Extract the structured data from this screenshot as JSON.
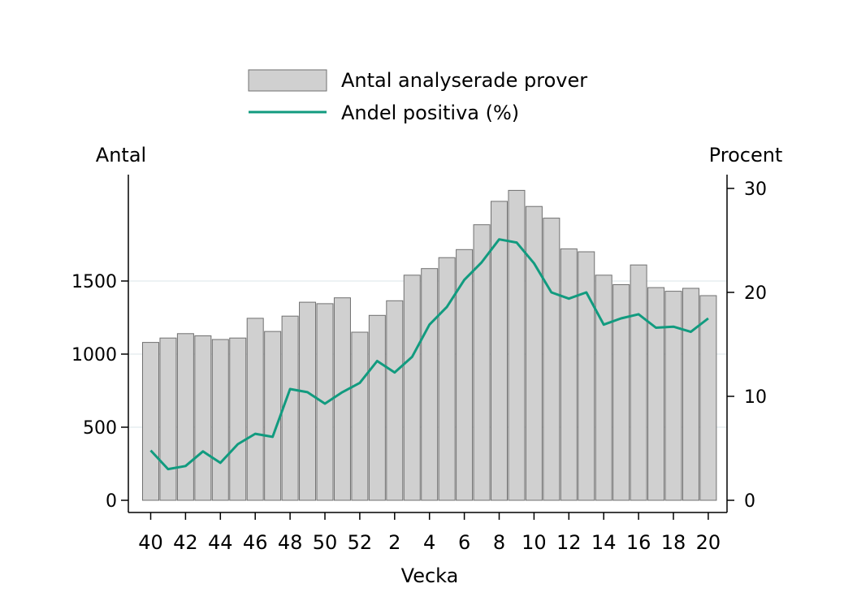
{
  "chart_data": {
    "type": "bar",
    "xlabel": "Vecka",
    "ylabel_left": "Antal",
    "ylabel_right": "Procent",
    "categories": [
      "40",
      "41",
      "42",
      "43",
      "44",
      "45",
      "46",
      "47",
      "48",
      "49",
      "50",
      "51",
      "52",
      "1",
      "2",
      "3",
      "4",
      "5",
      "6",
      "7",
      "8",
      "9",
      "10",
      "11",
      "12",
      "13",
      "14",
      "15",
      "16",
      "17",
      "18",
      "19",
      "20"
    ],
    "x_tick_labels": [
      "40",
      "42",
      "44",
      "46",
      "48",
      "50",
      "52",
      "2",
      "4",
      "6",
      "8",
      "10",
      "12",
      "14",
      "16",
      "18",
      "20"
    ],
    "left_axis": {
      "ylim": [
        0,
        2100
      ],
      "ticks": [
        0,
        500,
        1000,
        1500
      ]
    },
    "right_axis": {
      "ylim": [
        0,
        31.5
      ],
      "ticks": [
        0,
        10,
        20,
        30
      ]
    },
    "grid": "horizontal",
    "legend_position": "top-center",
    "colors": {
      "bar_fill": "#d0d0d0",
      "bar_stroke": "#707070",
      "line": "#119b7f",
      "axis": "#000000",
      "grid": "#e7eef1"
    },
    "series": [
      {
        "name": "Antal analyserade prover",
        "type": "bar",
        "axis": "left",
        "values": [
          1080,
          1110,
          1140,
          1125,
          1100,
          1110,
          1245,
          1155,
          1260,
          1355,
          1345,
          1385,
          1150,
          1265,
          1365,
          1540,
          1585,
          1660,
          1715,
          1885,
          2045,
          2120,
          2010,
          1930,
          1720,
          1700,
          1540,
          1475,
          1610,
          1455,
          1430,
          1450,
          1400
        ]
      },
      {
        "name": "Andel positiva (%)",
        "type": "line",
        "axis": "right",
        "values": [
          4.8,
          3.0,
          3.3,
          4.7,
          3.6,
          5.4,
          6.4,
          6.1,
          10.7,
          10.4,
          9.3,
          10.4,
          11.3,
          13.4,
          12.3,
          13.8,
          16.9,
          18.6,
          21.2,
          22.9,
          25.1,
          24.8,
          22.8,
          20.0,
          19.4,
          20.0,
          16.9,
          17.5,
          17.9,
          16.6,
          16.7,
          16.2,
          17.5
        ]
      }
    ]
  }
}
